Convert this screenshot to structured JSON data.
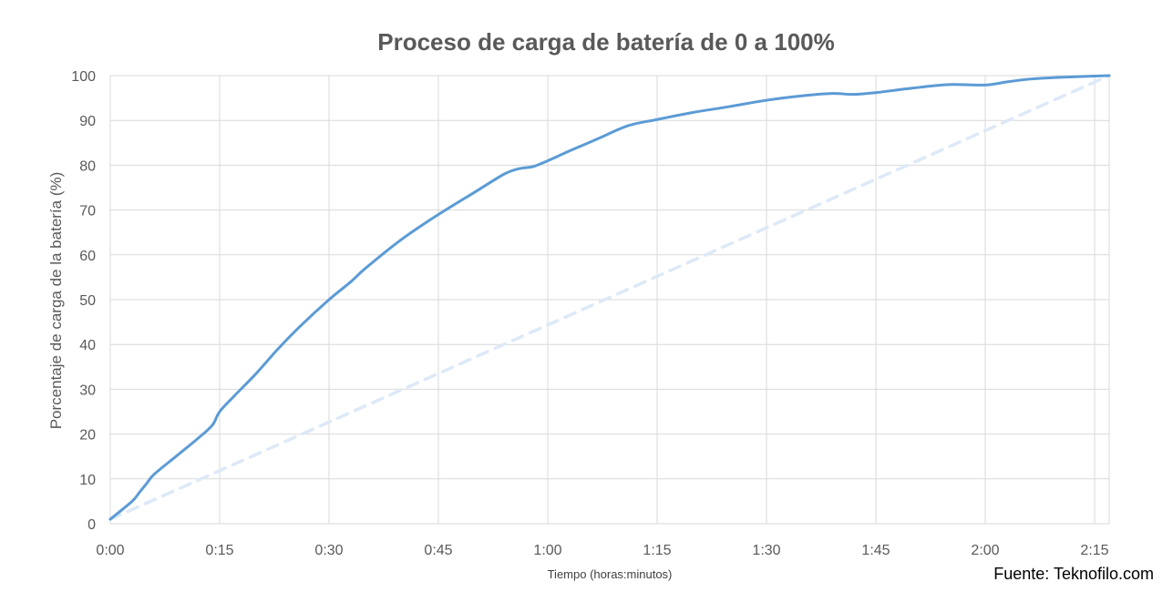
{
  "chart_data": {
    "type": "line",
    "title": "Proceso de carga de batería de 0 a 100%",
    "xlabel": "Tiempo (horas:minutos)",
    "ylabel": "Porcentaje de carga de la batería (%)",
    "x_unit": "minutes",
    "x_ticks": [
      "0:00",
      "0:15",
      "0:30",
      "0:45",
      "1:00",
      "1:15",
      "1:30",
      "1:45",
      "2:00",
      "2:15"
    ],
    "y_ticks": [
      "0",
      "10",
      "20",
      "30",
      "40",
      "50",
      "60",
      "70",
      "80",
      "90",
      "100"
    ],
    "xlim": [
      0,
      137
    ],
    "ylim": [
      0,
      100
    ],
    "grid": true,
    "series": [
      {
        "style": "solid",
        "color": "#5b9bd5",
        "x": [
          0,
          3,
          4,
          5,
          6,
          9,
          12,
          14,
          15,
          17,
          20,
          23,
          26,
          30,
          33,
          35,
          40,
          45,
          50,
          54,
          56,
          58,
          60,
          63,
          67,
          71,
          75,
          80,
          85,
          90,
          95,
          99,
          102,
          105,
          110,
          115,
          120,
          123,
          126,
          130,
          137
        ],
        "y": [
          1,
          5,
          7,
          9,
          11,
          15,
          19,
          22,
          25,
          28.5,
          33.5,
          39,
          44,
          50,
          54,
          57,
          63.5,
          69,
          74,
          78,
          79.2,
          79.7,
          81,
          83.2,
          86,
          88.8,
          90.2,
          91.8,
          93.1,
          94.5,
          95.5,
          96,
          95.8,
          96.2,
          97.2,
          98,
          97.9,
          98.6,
          99.2,
          99.6,
          100
        ]
      },
      {
        "style": "dashed",
        "color": "#dde9f7",
        "x": [
          0,
          137
        ],
        "y": [
          1,
          100
        ]
      }
    ]
  },
  "source_text": "Fuente: Teknofilo.com"
}
